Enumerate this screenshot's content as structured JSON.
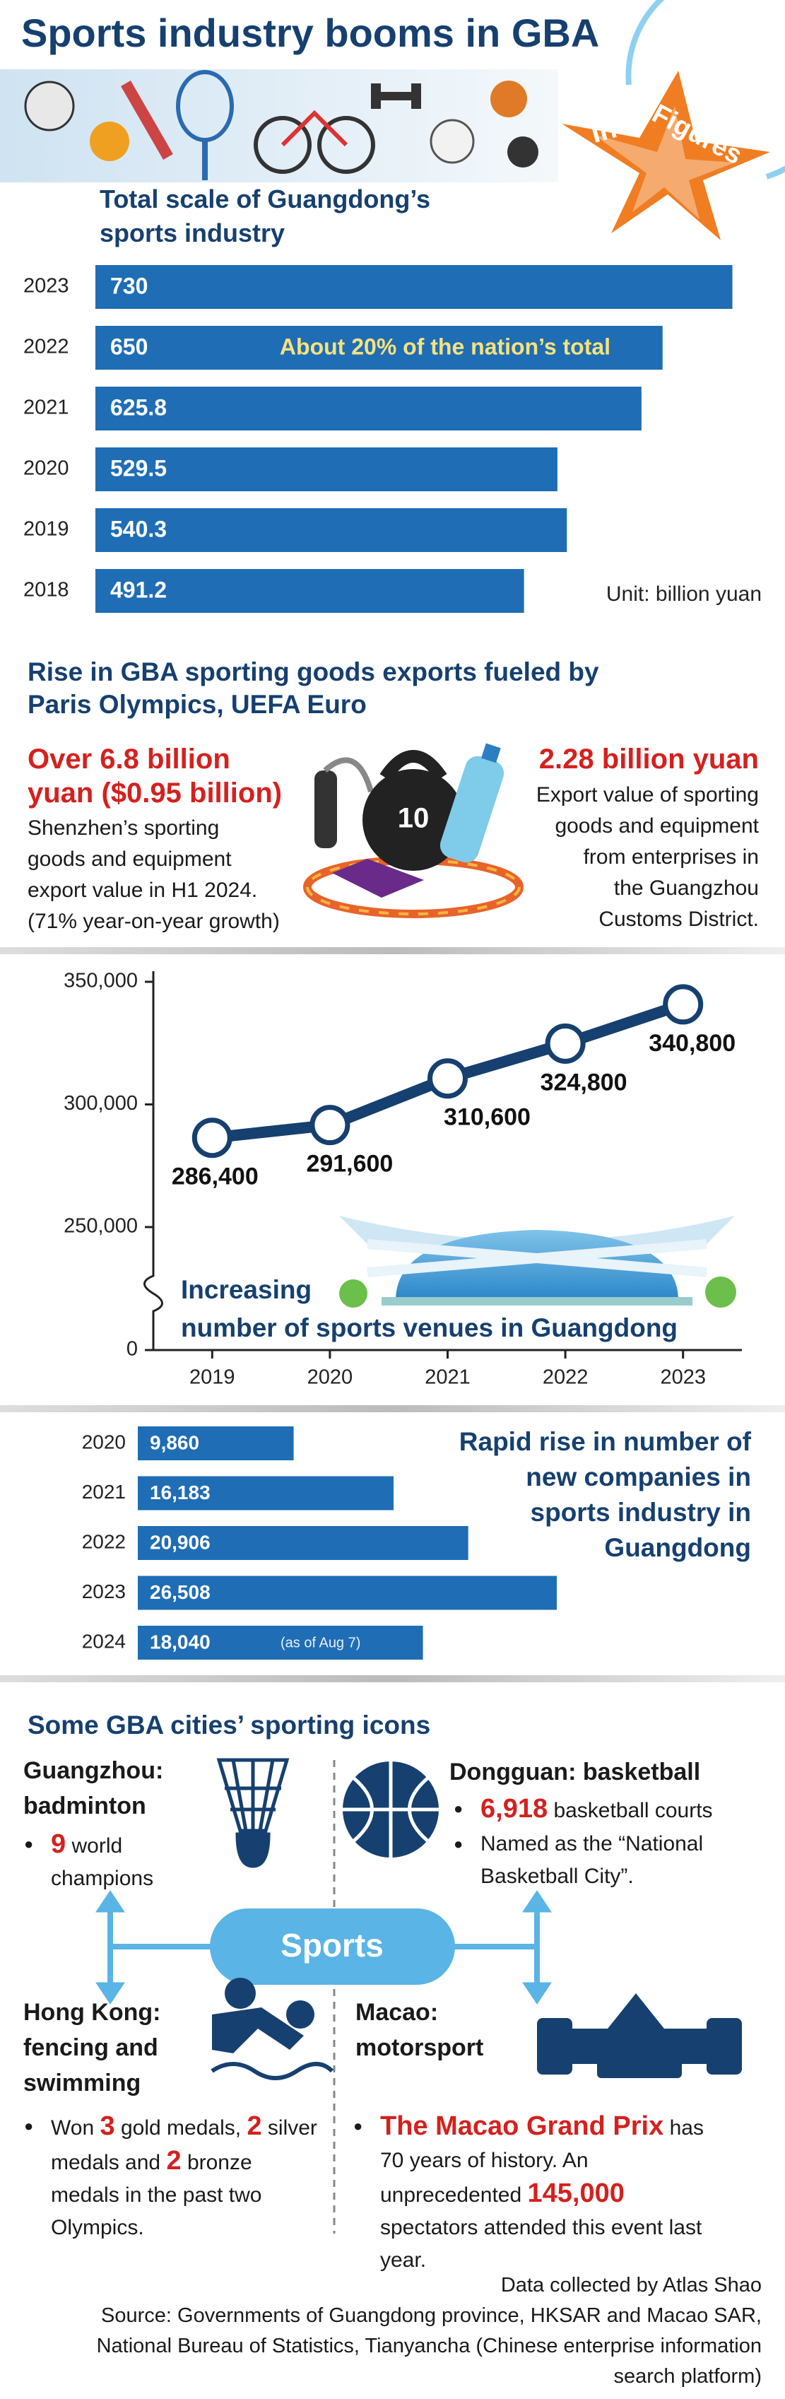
{
  "header": {
    "title": "Sports industry booms in GBA",
    "badge": [
      "In",
      "Figures"
    ]
  },
  "chart_data": [
    {
      "type": "hbar",
      "title": [
        "Total scale of Guangdong’s",
        "sports industry"
      ],
      "categories": [
        "2023",
        "2022",
        "2021",
        "2020",
        "2019",
        "2018"
      ],
      "values": [
        730,
        650,
        625.8,
        529.5,
        540.3,
        491.2
      ],
      "color": "#1f6db5",
      "annotation": "About 20% of the nation’s total",
      "unit": "Unit: billion yuan"
    },
    {
      "type": "line",
      "title": [
        "Increasing",
        "number of sports venues in Guangdong"
      ],
      "x": [
        2019,
        2020,
        2021,
        2022,
        2023
      ],
      "values": [
        286400,
        291600,
        310600,
        324800,
        340800
      ],
      "value_labels": [
        "286,400",
        "291,600",
        "310,600",
        "324,800",
        "340,800"
      ],
      "color": "#16406f",
      "xlim": [
        2018.5,
        2023.5
      ],
      "xticks": [
        2019,
        2020,
        2021,
        2022,
        2023
      ],
      "ylim": [
        250000,
        350000
      ],
      "yticks": [
        0,
        {
          "value": 250000,
          "label": "250,000"
        },
        {
          "value": 300000,
          "label": "300,000"
        },
        {
          "value": 350000,
          "label": "350,000"
        }
      ],
      "axis_break": true
    },
    {
      "type": "hbar",
      "title": [
        "Rapid rise in number of",
        "new companies in",
        "sports industry in",
        "Guangdong"
      ],
      "categories": [
        "2020",
        "2021",
        "2022",
        "2023",
        "2024"
      ],
      "values": [
        9860,
        16183,
        20906,
        26508,
        18040
      ],
      "value_labels": [
        "9,860",
        "16,183",
        "20,906",
        "26,508",
        "18,040"
      ],
      "color": "#1f6db5",
      "annotation": "(as of Aug 7)"
    }
  ],
  "exports": {
    "title": [
      "Rise in GBA sporting goods exports fueled by",
      "Paris Olympics, UEFA Euro"
    ],
    "left": {
      "headline": [
        "Over 6.8 billion",
        "yuan ($0.95 billion)"
      ],
      "text": [
        "Shenzhen’s sporting",
        "goods and equipment",
        "export value in H1 2024.",
        "(71% year-on-year growth)"
      ]
    },
    "right": {
      "headline": [
        "2.28 billion yuan"
      ],
      "text": [
        "Export value of sporting",
        "goods and equipment",
        "from enterprises in",
        "the Guangzhou",
        "Customs District."
      ]
    },
    "kettlebell": "10"
  },
  "icons": {
    "title": "Some GBA cities’ sporting icons",
    "center": "Sports",
    "guangzhou": {
      "title": [
        "Guangzhou:",
        "badminton"
      ],
      "bullets": [
        [
          {
            "text": "9",
            "highlight": true
          },
          {
            "text": "world champions"
          }
        ]
      ]
    },
    "dongguan": {
      "title": [
        "Dongguan: basketball"
      ],
      "bullets": [
        [
          {
            "text": "6,918",
            "highlight": true
          },
          {
            "text": "basketball courts"
          }
        ],
        [
          {
            "text": "Named as the “National Basketball City”."
          }
        ]
      ]
    },
    "hong_kong": {
      "title": [
        "Hong Kong:",
        "fencing and",
        "swimming"
      ],
      "bullets": [
        [
          {
            "text": "Won"
          },
          {
            "text": "3",
            "highlight": true
          },
          {
            "text": "gold medals,"
          },
          {
            "text": "2",
            "highlight": true
          },
          {
            "text": "silver medals and"
          },
          {
            "text": "2",
            "highlight": true
          },
          {
            "text": "bronze medals in the past two Olympics."
          }
        ]
      ]
    },
    "macao": {
      "title": [
        "Macao:",
        "motorsport"
      ],
      "bullets": [
        [
          {
            "text": "The Macao Grand Prix",
            "highlight": true
          },
          {
            "text": "has 70 years of history. An unprecedented"
          },
          {
            "text": "145,000",
            "highlight": true
          },
          {
            "text": "spectators attended this event last year."
          }
        ]
      ]
    }
  },
  "footer": [
    "Data collected by Atlas Shao",
    "Source: Governments of Guangdong province, HKSAR and Macao SAR,",
    "National Bureau of Statistics, Tianyancha (Chinese enterprise information",
    "search platform)"
  ]
}
